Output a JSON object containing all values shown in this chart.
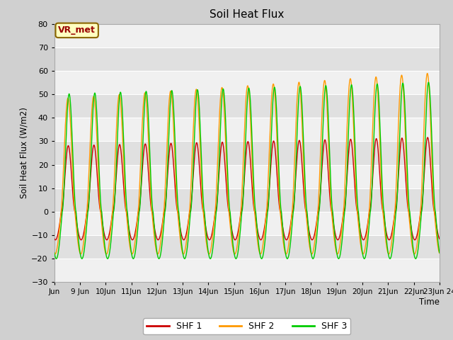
{
  "title": "Soil Heat Flux",
  "ylabel": "Soil Heat Flux (W/m2)",
  "xlabel": "Time",
  "xlim": [
    0,
    360
  ],
  "ylim": [
    -30,
    80
  ],
  "yticks": [
    -30,
    -20,
    -10,
    0,
    10,
    20,
    30,
    40,
    50,
    60,
    70,
    80
  ],
  "xtick_labels": [
    "Jun",
    "9 Jun",
    "10Jun",
    "11Jun",
    "12Jun",
    "13Jun",
    "14Jun",
    "15Jun",
    "16Jun",
    "17Jun",
    "18Jun",
    "19Jun",
    "20Jun",
    "21Jun",
    "22Jun",
    "23Jun 24"
  ],
  "xtick_positions": [
    0,
    24,
    48,
    72,
    96,
    120,
    144,
    168,
    192,
    216,
    240,
    264,
    288,
    312,
    336,
    360
  ],
  "color_shf1": "#cc0000",
  "color_shf2": "#ff9900",
  "color_shf3": "#00cc00",
  "legend_label1": "SHF 1",
  "legend_label2": "SHF 2",
  "legend_label3": "SHF 3",
  "annotation_text": "VR_met",
  "figsize": [
    6.4,
    4.8
  ],
  "dpi": 100,
  "band_colors": [
    "#f0f0f0",
    "#e0e0e0"
  ],
  "grid_color": "#ffffff",
  "fig_bg": "#d0d0d0",
  "plot_bg": "#e8e8e8"
}
